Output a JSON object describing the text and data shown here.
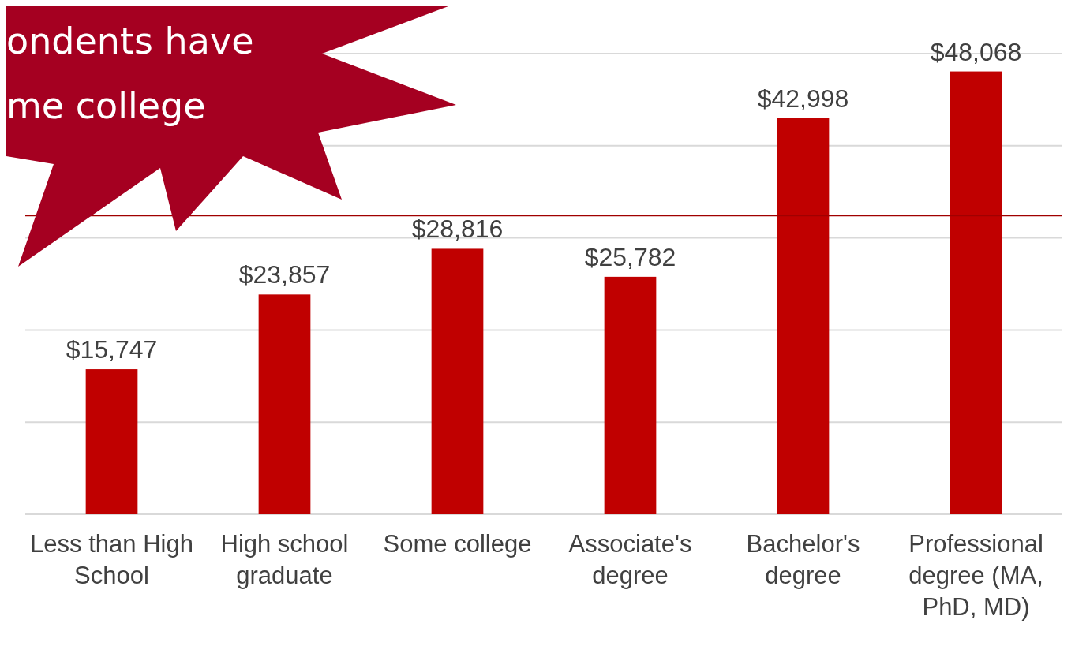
{
  "chart_data": {
    "type": "bar",
    "categories": [
      "Less than High School",
      "High school graduate",
      "Some college",
      "Associate's degree",
      "Bachelor's degree",
      "Professional degree (MA, PhD, MD)"
    ],
    "values": [
      15747,
      23857,
      28816,
      25782,
      42998,
      48068
    ],
    "value_labels": [
      "$15,747",
      "$23,857",
      "$28,816",
      "$25,782",
      "$42,998",
      "$48,068"
    ],
    "color": "#c00000",
    "ylim": [
      0,
      50000
    ],
    "yticks": [
      {
        "value": 0,
        "label": null
      },
      {
        "value": 10000,
        "label": null
      },
      {
        "value": 20000,
        "label": null
      },
      {
        "value": 30000,
        "label": null
      },
      {
        "value": 40000,
        "label": null
      },
      {
        "value": 50000,
        "label": null
      }
    ],
    "grid": "y",
    "tick_labels": "x",
    "ref_lines": [
      {
        "axis": "y",
        "value": 32400,
        "color": "#a00000"
      }
    ],
    "annotations": [
      "ondents have",
      "me college"
    ]
  }
}
